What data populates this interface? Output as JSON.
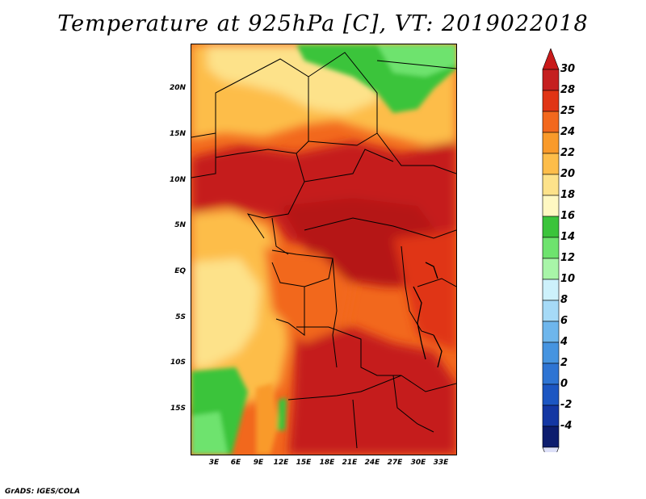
{
  "title": "Temperature at 925hPa [C], VT: 2019022018",
  "footer": "GrADS: IGES/COLA",
  "map": {
    "region": "Central Africa",
    "lat_labels": [
      "20N",
      "15N",
      "10N",
      "5N",
      "EQ",
      "5S",
      "10S",
      "15S"
    ],
    "lon_labels": [
      "3E",
      "6E",
      "9E",
      "12E",
      "15E",
      "18E",
      "21E",
      "24E",
      "27E",
      "30E",
      "33E"
    ]
  },
  "colorbar": {
    "labels": [
      "30",
      "28",
      "25",
      "24",
      "22",
      "20",
      "18",
      "16",
      "14",
      "12",
      "10",
      "8",
      "6",
      "4",
      "2",
      "0",
      "-2",
      "-4"
    ],
    "colors": [
      "#c51f1f",
      "#e03515",
      "#f2681d",
      "#f99a2a",
      "#fdbd4a",
      "#fde28a",
      "#fff8c2",
      "#3bc43b",
      "#6ee36e",
      "#a8f5a8",
      "#cdf1fb",
      "#a6daf7",
      "#6eb6ec",
      "#4694e0",
      "#2e74d3",
      "#1c56c2",
      "#1437a3",
      "#0d1d6e"
    ],
    "max_arrow_color": "#c91a1a",
    "min_arrow_color": "#dde0f8"
  }
}
